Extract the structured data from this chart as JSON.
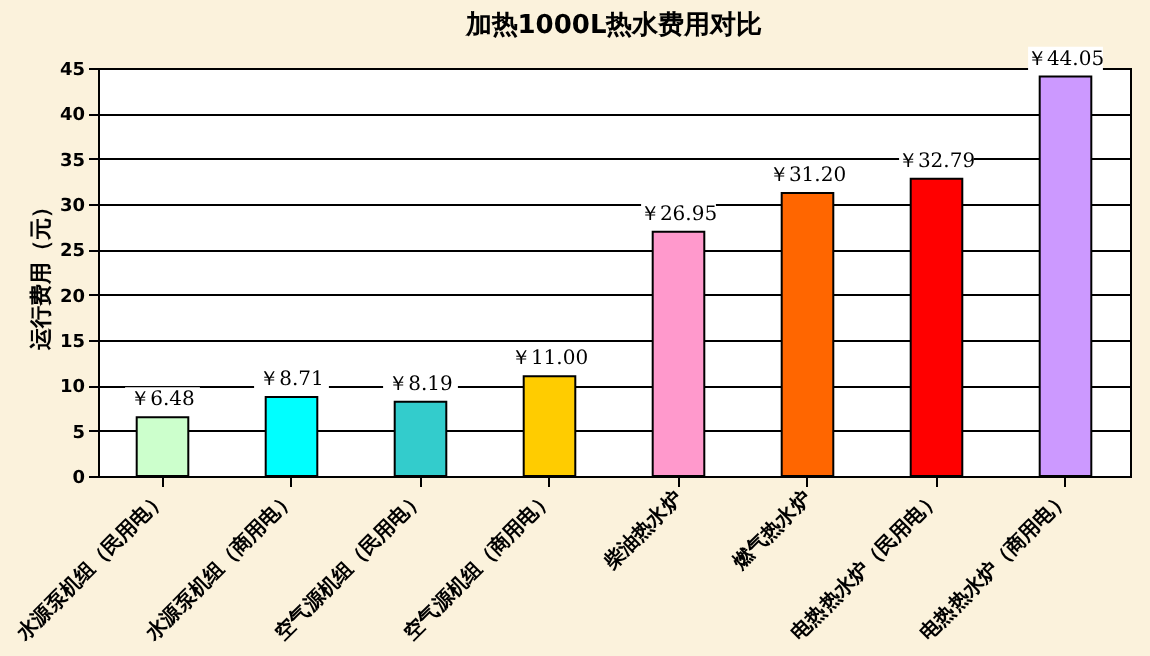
{
  "chart_data": {
    "type": "bar",
    "title": "加热1000L热水费用对比",
    "ylabel": "运行费用（元）",
    "categories": [
      "水源泵机组（民用电）",
      "水源泵机组（商用电）",
      "空气源机组（民用电）",
      "空气源机组（商用电）",
      "柴油热水炉",
      "燃气热水炉",
      "电热热水炉（民用电）",
      "电热热水炉（商用电）"
    ],
    "values": [
      6.48,
      8.71,
      8.19,
      11.0,
      26.95,
      31.2,
      32.79,
      44.05
    ],
    "value_labels": [
      "￥6.48",
      "￥8.71",
      "￥8.19",
      "￥11.00",
      "￥26.95",
      "￥31.20",
      "￥32.79",
      "￥44.05"
    ],
    "colors": [
      "#ccffcc",
      "#00ffff",
      "#33cccc",
      "#ffcc00",
      "#ff99cc",
      "#ff6600",
      "#ff0000",
      "#cc99ff"
    ],
    "ylim": [
      0,
      45
    ],
    "yticks": [
      0,
      5,
      10,
      15,
      20,
      25,
      30,
      35,
      40,
      45
    ],
    "grid": "y",
    "legend": false
  }
}
